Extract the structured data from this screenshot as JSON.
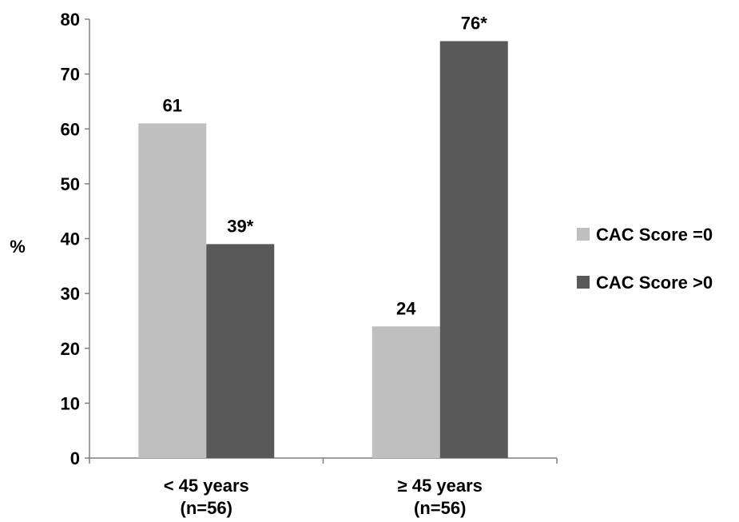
{
  "chart_data": {
    "type": "bar",
    "title": "",
    "xlabel": "",
    "ylabel": "%",
    "ylim": [
      0,
      80
    ],
    "yticks": [
      0,
      10,
      20,
      30,
      40,
      50,
      60,
      70,
      80
    ],
    "grid": false,
    "legend_position": "right",
    "categories": [
      {
        "line1": "< 45 years",
        "line2": "(n=56)"
      },
      {
        "line1": "≥ 45 years",
        "line2": "(n=56)"
      }
    ],
    "series": [
      {
        "name": "CAC Score =0",
        "color": "#bfbfbf",
        "values": [
          61,
          24
        ],
        "labels": [
          "61",
          "24"
        ]
      },
      {
        "name": "CAC Score >0",
        "color": "#595959",
        "values": [
          39,
          76
        ],
        "labels": [
          "39*",
          "76*"
        ]
      }
    ]
  }
}
